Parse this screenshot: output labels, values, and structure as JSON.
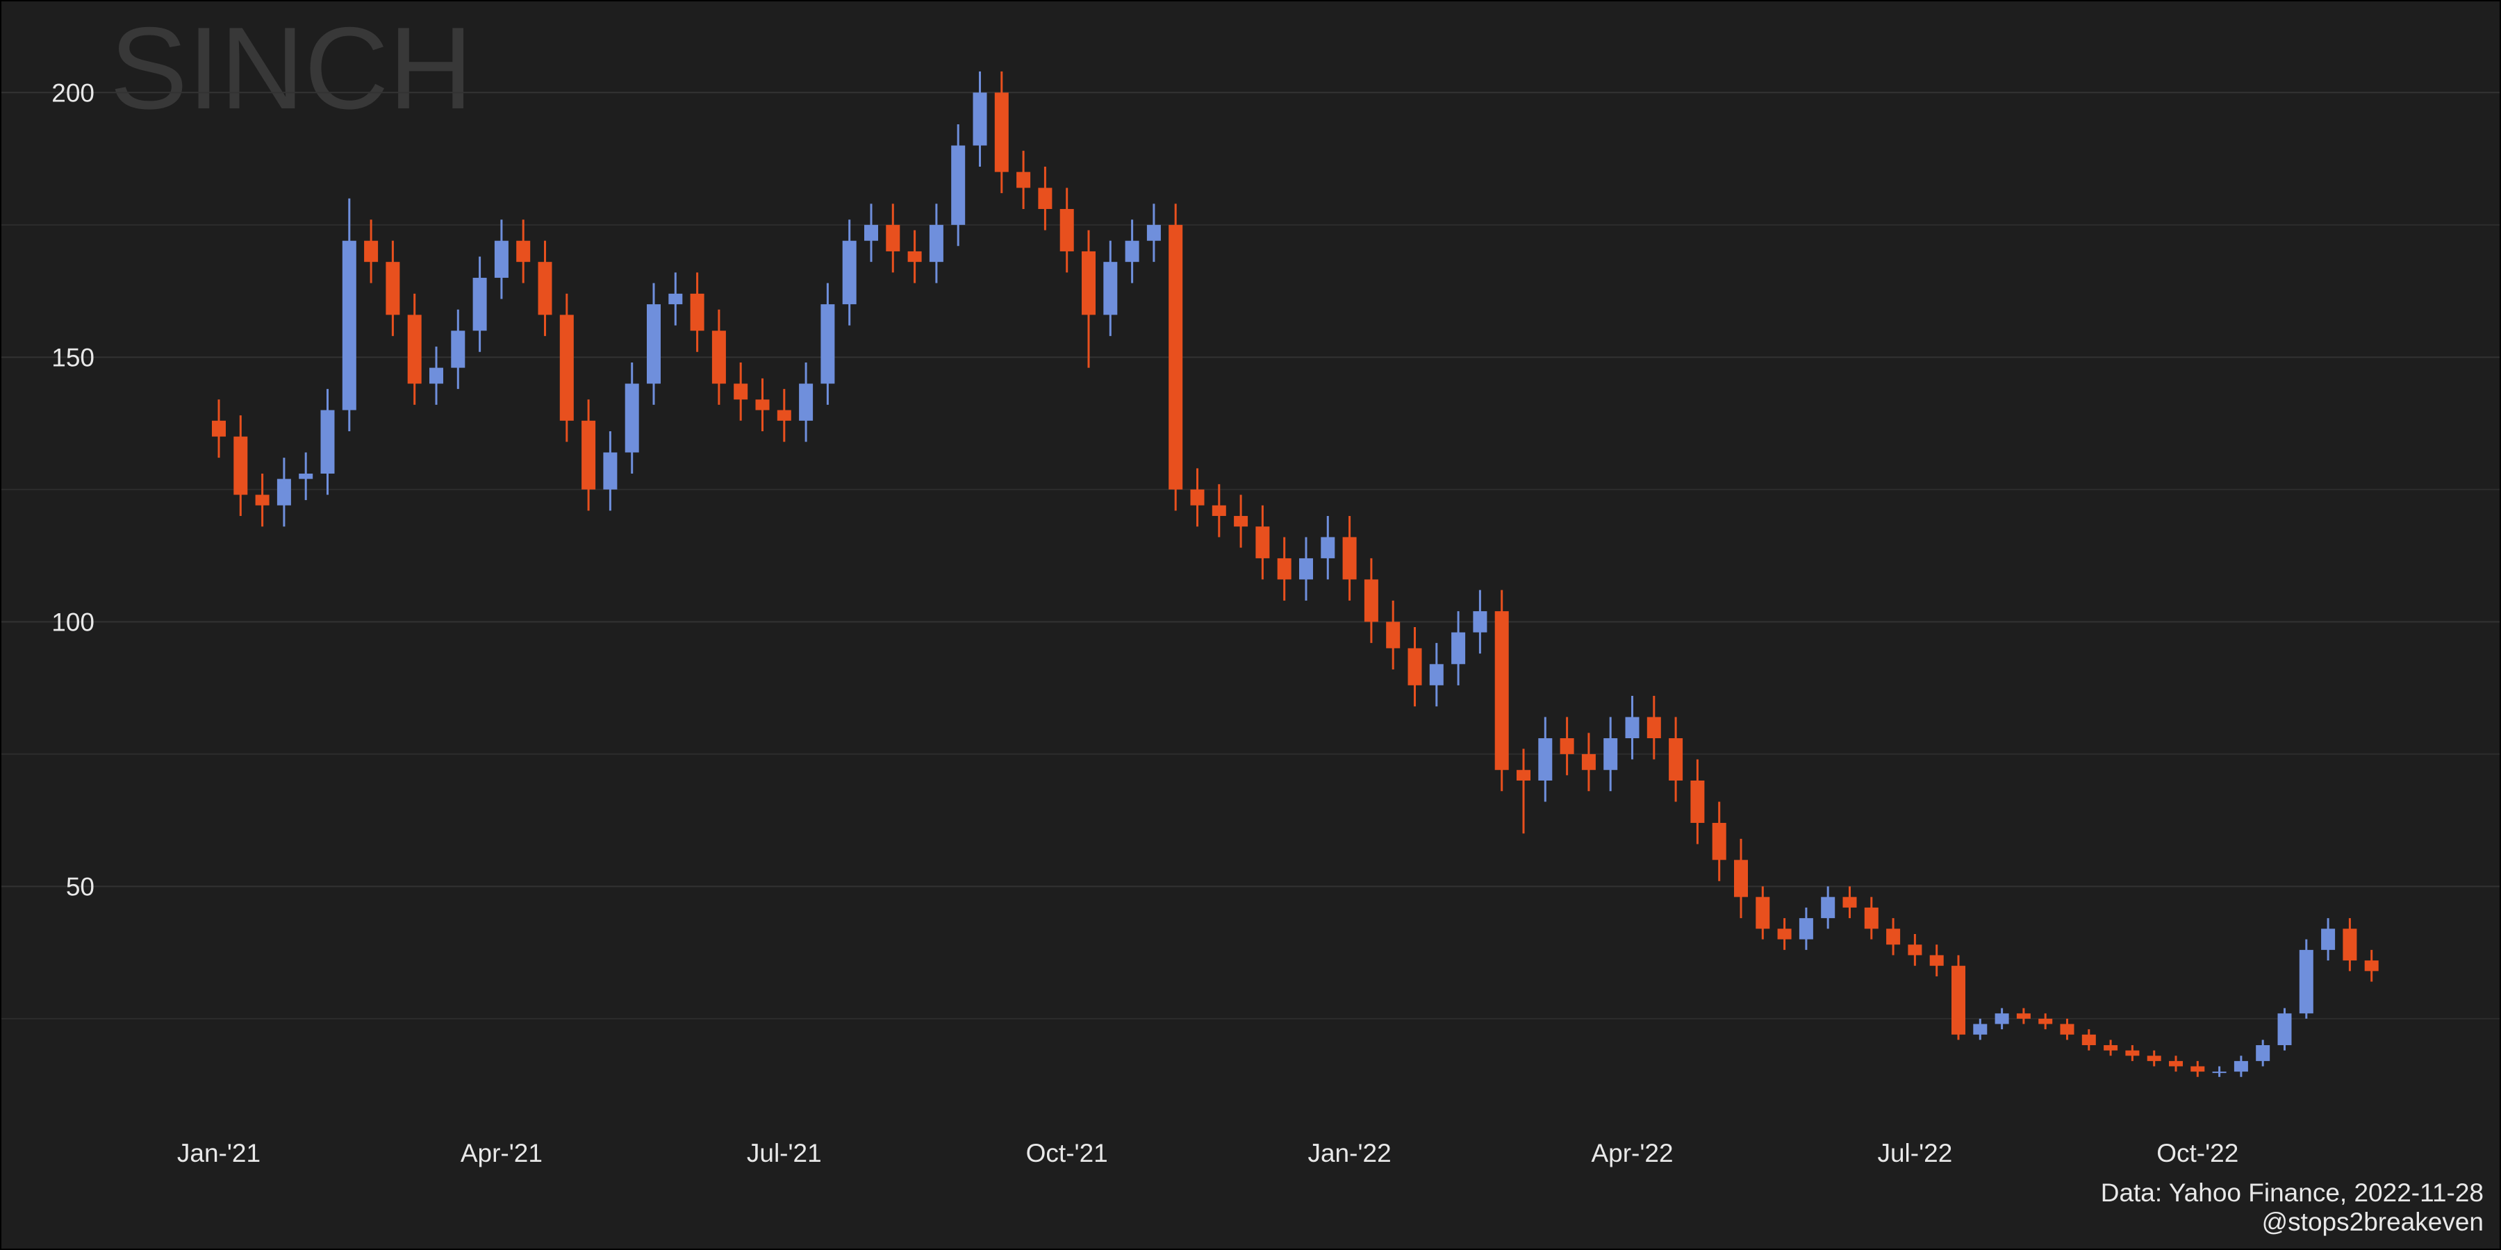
{
  "chart_data": {
    "type": "candlestick",
    "title": "SINCH",
    "caption": [
      "Data: Yahoo Finance, 2022-11-28",
      "@stops2breakeven"
    ],
    "categories": [
      "Jan-'21",
      null,
      null,
      null,
      null,
      null,
      null,
      null,
      null,
      null,
      null,
      null,
      null,
      "Apr-'21",
      null,
      null,
      null,
      null,
      null,
      null,
      null,
      null,
      null,
      null,
      null,
      null,
      "Jul-'21",
      null,
      null,
      null,
      null,
      null,
      null,
      null,
      null,
      null,
      null,
      null,
      null,
      "Oct-'21",
      null,
      null,
      null,
      null,
      null,
      null,
      null,
      null,
      null,
      null,
      null,
      null,
      "Jan-'22",
      null,
      null,
      null,
      null,
      null,
      null,
      null,
      null,
      null,
      null,
      null,
      null,
      "Apr-'22",
      null,
      null,
      null,
      null,
      null,
      null,
      null,
      null,
      null,
      null,
      null,
      null,
      "Jul-'22",
      null,
      null,
      null,
      null,
      null,
      null,
      null,
      null,
      null,
      null,
      null,
      null,
      "Oct-'22",
      null,
      null,
      null,
      null,
      null,
      null,
      null,
      null
    ],
    "open": [
      138,
      135,
      124,
      122,
      127,
      128,
      140,
      172,
      168,
      158,
      145,
      148,
      155,
      165,
      172,
      168,
      158,
      138,
      125,
      132,
      145,
      160,
      162,
      155,
      145,
      142,
      140,
      138,
      145,
      160,
      172,
      175,
      170,
      168,
      175,
      190,
      200,
      185,
      182,
      178,
      170,
      158,
      168,
      172,
      175,
      125,
      122,
      120,
      118,
      112,
      108,
      112,
      116,
      108,
      100,
      95,
      88,
      92,
      98,
      102,
      72,
      70,
      78,
      75,
      72,
      78,
      82,
      78,
      70,
      62,
      55,
      48,
      42,
      40,
      44,
      48,
      46,
      42,
      39,
      37,
      35,
      22,
      24,
      26,
      25,
      24,
      22,
      20,
      19,
      18,
      17,
      16,
      15,
      15,
      17,
      20,
      26,
      38,
      42,
      36
    ],
    "high": [
      142,
      139,
      128,
      131,
      132,
      144,
      180,
      176,
      172,
      162,
      152,
      159,
      169,
      176,
      176,
      172,
      162,
      142,
      136,
      149,
      164,
      166,
      166,
      159,
      149,
      146,
      144,
      149,
      164,
      176,
      179,
      179,
      174,
      179,
      194,
      204,
      204,
      189,
      186,
      182,
      174,
      172,
      176,
      179,
      179,
      129,
      126,
      124,
      122,
      116,
      116,
      120,
      120,
      112,
      104,
      99,
      96,
      102,
      106,
      106,
      76,
      82,
      82,
      79,
      82,
      86,
      86,
      82,
      74,
      66,
      59,
      50,
      44,
      46,
      50,
      50,
      48,
      44,
      41,
      39,
      37,
      25,
      27,
      27,
      26,
      25,
      23,
      21,
      20,
      19,
      18,
      17,
      16,
      18,
      21,
      27,
      40,
      44,
      44,
      38
    ],
    "low": [
      131,
      120,
      118,
      118,
      123,
      124,
      136,
      164,
      154,
      141,
      141,
      144,
      151,
      161,
      164,
      154,
      134,
      121,
      121,
      128,
      141,
      156,
      151,
      141,
      138,
      136,
      134,
      134,
      141,
      156,
      168,
      166,
      164,
      164,
      171,
      186,
      181,
      178,
      174,
      166,
      148,
      154,
      164,
      168,
      121,
      118,
      116,
      114,
      108,
      104,
      104,
      108,
      104,
      96,
      91,
      84,
      84,
      88,
      94,
      68,
      60,
      66,
      71,
      68,
      68,
      74,
      74,
      66,
      58,
      51,
      44,
      40,
      38,
      38,
      42,
      44,
      40,
      37,
      35,
      33,
      21,
      21,
      23,
      24,
      23,
      21,
      19,
      18,
      17,
      16,
      15,
      14,
      14,
      14,
      16,
      19,
      25,
      36,
      34,
      32
    ],
    "close": [
      135,
      124,
      122,
      127,
      128,
      140,
      172,
      168,
      158,
      145,
      148,
      155,
      165,
      172,
      168,
      158,
      138,
      125,
      132,
      145,
      160,
      162,
      155,
      145,
      142,
      140,
      138,
      145,
      160,
      172,
      175,
      170,
      168,
      175,
      190,
      200,
      185,
      182,
      178,
      170,
      158,
      168,
      172,
      175,
      125,
      122,
      120,
      118,
      112,
      108,
      112,
      116,
      108,
      100,
      95,
      88,
      92,
      98,
      102,
      72,
      70,
      78,
      75,
      72,
      78,
      82,
      78,
      70,
      62,
      55,
      48,
      42,
      40,
      44,
      48,
      46,
      42,
      39,
      37,
      35,
      22,
      24,
      26,
      25,
      24,
      22,
      20,
      19,
      18,
      17,
      16,
      15,
      15,
      17,
      20,
      26,
      38,
      42,
      36,
      34
    ],
    "up_color": "#6f8fdc",
    "down_color": "#e8501e",
    "ylim": [
      3.6,
      215
    ],
    "yticks": [
      50,
      100,
      150,
      200
    ],
    "minor_yticks": [
      25,
      75,
      125,
      175
    ],
    "grid": true
  }
}
